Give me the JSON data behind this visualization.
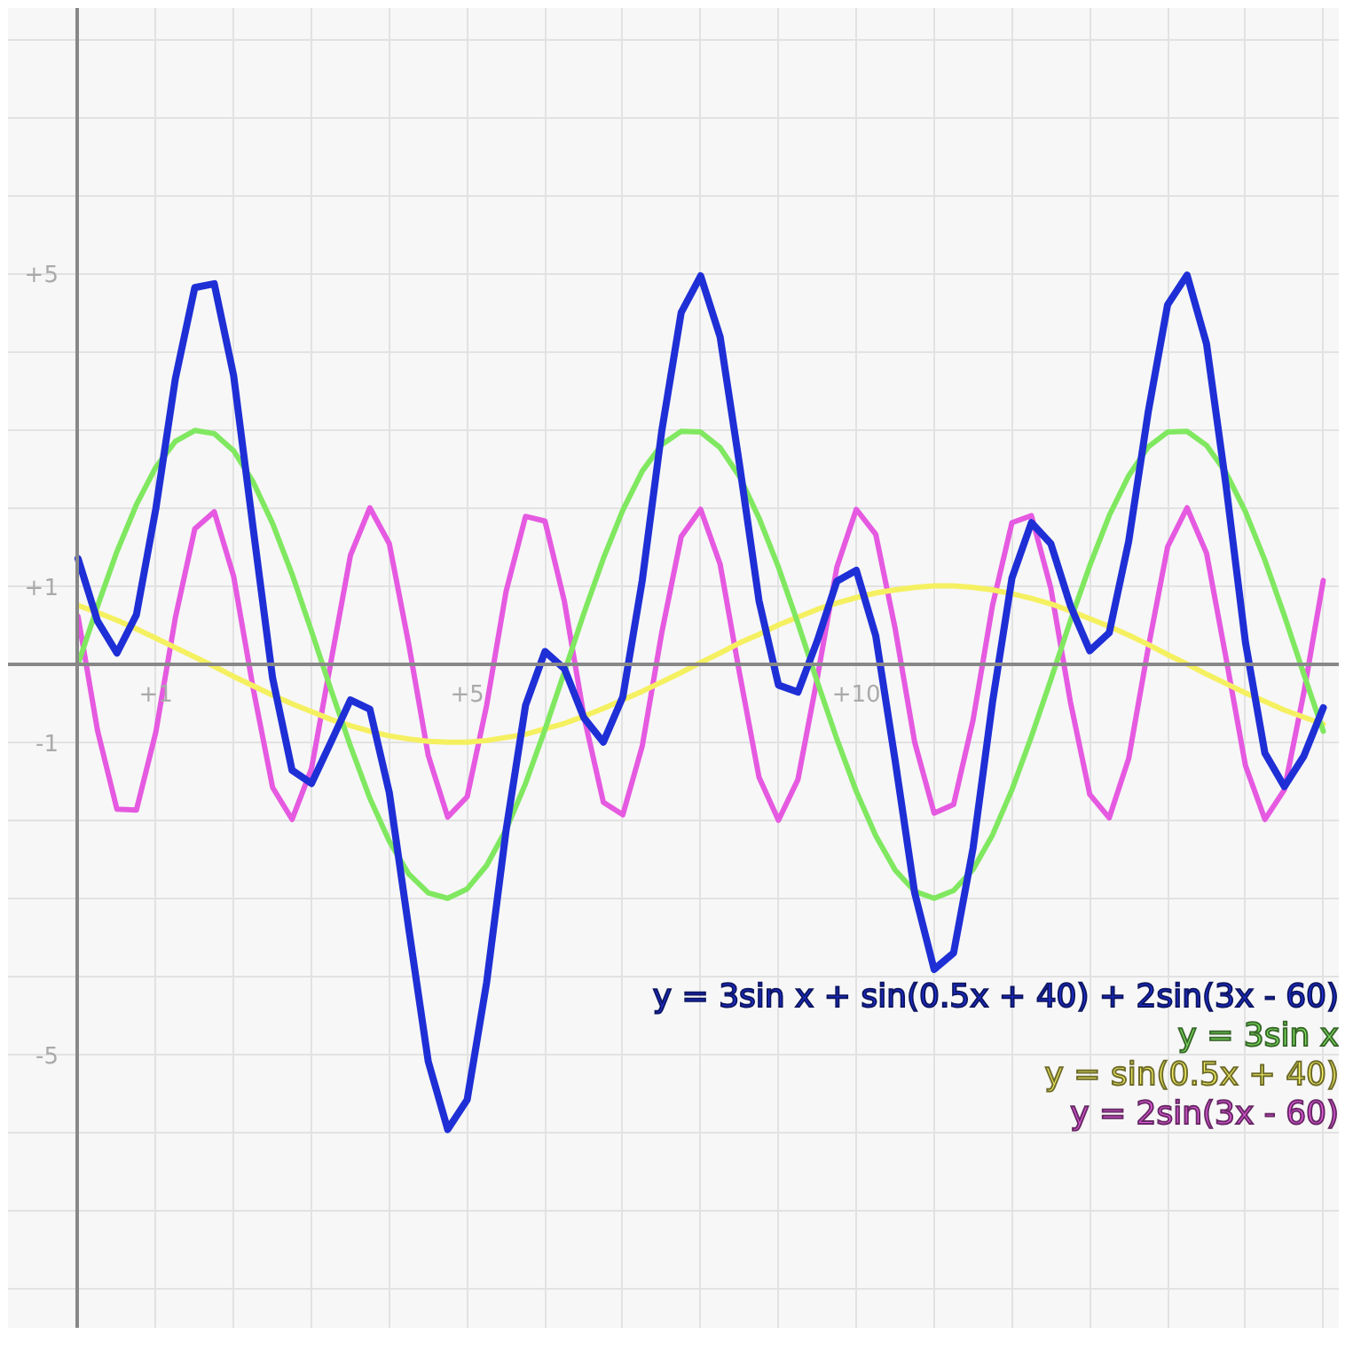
{
  "chart_data": {
    "type": "line",
    "x": [
      0,
      0.25,
      0.5,
      0.75,
      1,
      1.25,
      1.5,
      1.75,
      2,
      2.25,
      2.5,
      2.75,
      3,
      3.25,
      3.5,
      3.75,
      4,
      4.25,
      4.5,
      4.75,
      5,
      5.25,
      5.5,
      5.75,
      6,
      6.25,
      6.5,
      6.75,
      7,
      7.25,
      7.5,
      7.75,
      8,
      8.25,
      8.5,
      8.75,
      9,
      9.25,
      9.5,
      9.75,
      10,
      10.25,
      10.5,
      10.75,
      11,
      11.25,
      11.5,
      11.75,
      12,
      12.25,
      12.5,
      12.75,
      13,
      13.25,
      13.5,
      13.75,
      14,
      14.25,
      14.5,
      14.75,
      15,
      15.25,
      15.5,
      15.75,
      16
    ],
    "series": [
      {
        "name": "y = 3sin x + sin(0.5x + 40) + 2sin(3x - 60)",
        "color": "#1f2fd6",
        "values": [
          1.35,
          0.55,
          0.14,
          0.63,
          1.99,
          3.65,
          4.82,
          4.87,
          3.69,
          1.74,
          -0.18,
          -1.36,
          -1.53,
          -1.0,
          -0.46,
          -0.58,
          -1.65,
          -3.39,
          -5.09,
          -5.96,
          -5.58,
          -4.08,
          -2.13,
          -0.53,
          0.16,
          -0.06,
          -0.69,
          -1.0,
          -0.42,
          1.07,
          2.98,
          4.5,
          4.97,
          4.19,
          2.55,
          0.81,
          -0.27,
          -0.36,
          0.3,
          1.06,
          1.2,
          0.36,
          -1.24,
          -2.93,
          -3.91,
          -3.7,
          -2.36,
          -0.49,
          1.1,
          1.81,
          1.54,
          0.75,
          0.17,
          0.4,
          1.57,
          3.22,
          4.6,
          4.98,
          4.1,
          2.29,
          0.28,
          -1.14,
          -1.57,
          -1.18,
          -0.56
        ]
      },
      {
        "name": "y = 3sin x",
        "color": "#80e860",
        "values": [
          0,
          0.74,
          1.44,
          2.04,
          2.52,
          2.85,
          2.99,
          2.95,
          2.73,
          2.33,
          1.8,
          1.15,
          0.42,
          -0.33,
          -1.05,
          -1.72,
          -2.27,
          -2.69,
          -2.93,
          -3.0,
          -2.88,
          -2.58,
          -2.12,
          -1.53,
          -0.84,
          -0.1,
          0.65,
          1.35,
          1.97,
          2.47,
          2.81,
          2.98,
          2.97,
          2.77,
          2.4,
          1.87,
          1.24,
          0.52,
          -0.23,
          -0.96,
          -1.63,
          -2.2,
          -2.64,
          -2.91,
          -3.0,
          -2.9,
          -2.63,
          -2.19,
          -1.61,
          -0.93,
          -0.2,
          0.55,
          1.26,
          1.9,
          2.41,
          2.78,
          2.97,
          2.98,
          2.8,
          2.45,
          1.95,
          1.33,
          0.62,
          -0.13,
          -0.86
        ]
      },
      {
        "name": "y = sin(0.5x + 40)",
        "color": "#f5f060",
        "values": [
          0.75,
          0.66,
          0.56,
          0.45,
          0.33,
          0.21,
          0.09,
          -0.03,
          -0.16,
          -0.28,
          -0.4,
          -0.51,
          -0.61,
          -0.71,
          -0.79,
          -0.86,
          -0.92,
          -0.96,
          -0.99,
          -1.0,
          -1.0,
          -0.98,
          -0.94,
          -0.9,
          -0.83,
          -0.76,
          -0.67,
          -0.57,
          -0.46,
          -0.35,
          -0.23,
          -0.11,
          0.02,
          0.14,
          0.27,
          0.38,
          0.5,
          0.6,
          0.7,
          0.78,
          0.85,
          0.91,
          0.95,
          0.98,
          1.0,
          1.0,
          0.98,
          0.95,
          0.9,
          0.84,
          0.77,
          0.68,
          0.58,
          0.48,
          0.37,
          0.25,
          0.12,
          0.0,
          -0.13,
          -0.25,
          -0.37,
          -0.48,
          -0.59,
          -0.68,
          -0.77
        ]
      },
      {
        "name": "y = 2sin(3x - 60)",
        "color": "#e55ae0",
        "values": [
          0.61,
          -0.85,
          -1.86,
          -1.87,
          -0.87,
          0.59,
          1.73,
          1.95,
          1.12,
          -0.31,
          -1.58,
          -1.99,
          -1.34,
          0.03,
          1.39,
          2.0,
          1.54,
          0.25,
          -1.17,
          -1.96,
          -1.7,
          -0.53,
          0.93,
          1.89,
          1.83,
          0.8,
          -0.67,
          -1.77,
          -1.93,
          -1.05,
          0.4,
          1.63,
          1.98,
          1.28,
          -0.12,
          -1.45,
          -2.0,
          -1.48,
          -0.17,
          1.24,
          1.98,
          1.66,
          0.45,
          -1.0,
          -1.91,
          -1.8,
          -0.72,
          0.75,
          1.81,
          1.9,
          0.97,
          -0.48,
          -1.67,
          -1.97,
          -1.21,
          0.2,
          1.5,
          2.0,
          1.42,
          0.08,
          -1.3,
          -1.99,
          -1.61,
          -0.37,
          1.07
        ]
      }
    ],
    "xlim": [
      -0.9,
      16.2
    ],
    "ylim": [
      -8.5,
      8.4
    ],
    "xticks": [
      {
        "value": 1,
        "label": "+1"
      },
      {
        "value": 2,
        "label": null
      },
      {
        "value": 3,
        "label": null
      },
      {
        "value": 4,
        "label": null
      },
      {
        "value": 5,
        "label": "+5"
      },
      {
        "value": 6,
        "label": null
      },
      {
        "value": 7,
        "label": null
      },
      {
        "value": 8,
        "label": null
      },
      {
        "value": 9,
        "label": null
      },
      {
        "value": 10,
        "label": "+10"
      },
      {
        "value": 11,
        "label": null
      },
      {
        "value": 12,
        "label": null
      },
      {
        "value": 13,
        "label": null
      },
      {
        "value": 14,
        "label": null
      },
      {
        "value": 15,
        "label": null
      },
      {
        "value": 16,
        "label": null
      }
    ],
    "yticks": [
      {
        "value": -8,
        "label": null
      },
      {
        "value": -7,
        "label": null
      },
      {
        "value": -6,
        "label": null
      },
      {
        "value": -5,
        "label": "-5"
      },
      {
        "value": -4,
        "label": null
      },
      {
        "value": -3,
        "label": null
      },
      {
        "value": -2,
        "label": null
      },
      {
        "value": -1,
        "label": "-1"
      },
      {
        "value": 1,
        "label": "+1"
      },
      {
        "value": 2,
        "label": null
      },
      {
        "value": 3,
        "label": null
      },
      {
        "value": 4,
        "label": null
      },
      {
        "value": 5,
        "label": "+5"
      },
      {
        "value": 6,
        "label": null
      },
      {
        "value": 7,
        "label": null
      },
      {
        "value": 8,
        "label": null
      }
    ],
    "grid": true,
    "legend": "bottom right",
    "marker": "none",
    "line_style": "solid"
  }
}
